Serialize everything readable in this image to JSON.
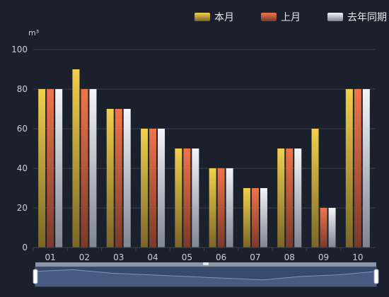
{
  "chart_data": {
    "type": "bar",
    "categories": [
      "01",
      "02",
      "03",
      "04",
      "05",
      "06",
      "07",
      "08",
      "09",
      "10"
    ],
    "series": [
      {
        "name": "本月",
        "values": [
          80,
          90,
          70,
          60,
          50,
          40,
          30,
          50,
          60,
          80
        ],
        "color_top": "#f2d04a",
        "color_bottom": "#7a6628"
      },
      {
        "name": "上月",
        "values": [
          80,
          80,
          70,
          60,
          50,
          40,
          30,
          50,
          20,
          80
        ],
        "color_top": "#f0744a",
        "color_bottom": "#7a3a2a"
      },
      {
        "name": "去年同期",
        "values": [
          80,
          80,
          70,
          60,
          50,
          40,
          30,
          50,
          20,
          80
        ],
        "color_top": "#f4f5f8",
        "color_bottom": "#7e8594"
      }
    ],
    "unit": "m³",
    "ylim": [
      0,
      100
    ],
    "yticks": [
      0,
      20,
      40,
      60,
      80,
      100
    ],
    "grid": true,
    "legend_position": "top-right",
    "zoom_slider": {
      "start": 0,
      "end": 1
    }
  },
  "colors": {
    "background": "#1b212c",
    "grid": "#3a414d",
    "axis_text": "#c9ced8",
    "slider_track": "#2e3c55",
    "slider_fill": "#3c5078",
    "slider_handle": "#ffffff"
  }
}
